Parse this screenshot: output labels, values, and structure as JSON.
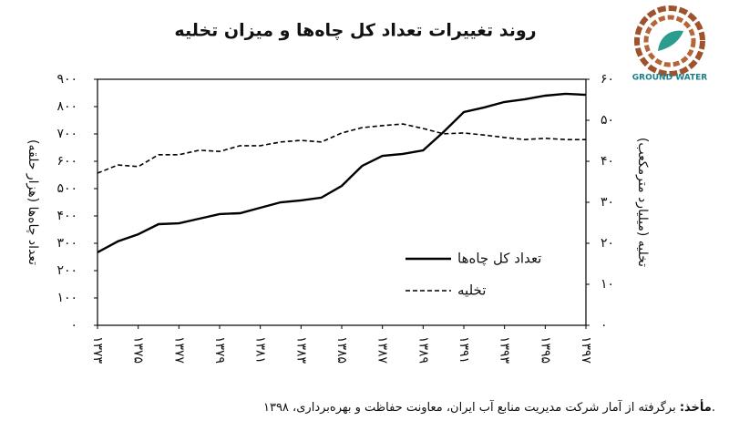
{
  "chart_data": {
    "type": "line",
    "title": "روند تغییرات تعداد کل چاه‌ها و میزان تخلیه",
    "y_label": "تعداد چاه‌ها (هزار حلقه)",
    "y2_label": "تخلیه (میلیارد مترمکعب)",
    "x": [
      1373,
      1374,
      1375,
      1376,
      1377,
      1378,
      1379,
      1380,
      1381,
      1382,
      1383,
      1384,
      1385,
      1386,
      1387,
      1388,
      1389,
      1390,
      1391,
      1392,
      1393,
      1394,
      1395,
      1396,
      1397
    ],
    "xlim": [
      1373,
      1397
    ],
    "xticks": [
      {
        "value": 1373,
        "label": "۱۳۷۳"
      },
      {
        "value": 1375,
        "label": "۱۳۷۵"
      },
      {
        "value": 1377,
        "label": "۱۳۷۷"
      },
      {
        "value": 1379,
        "label": "۱۳۷۹"
      },
      {
        "value": 1381,
        "label": "۱۳۸۱"
      },
      {
        "value": 1383,
        "label": "۱۳۸۳"
      },
      {
        "value": 1385,
        "label": "۱۳۸۵"
      },
      {
        "value": 1387,
        "label": "۱۳۸۷"
      },
      {
        "value": 1389,
        "label": "۱۳۸۹"
      },
      {
        "value": 1391,
        "label": "۱۳۹۱"
      },
      {
        "value": 1393,
        "label": "۱۳۹۳"
      },
      {
        "value": 1395,
        "label": "۱۳۹۵"
      },
      {
        "value": 1397,
        "label": "۱۳۹۷"
      }
    ],
    "ylim": [
      0,
      900
    ],
    "yticks": [
      {
        "value": 0,
        "label": "۰"
      },
      {
        "value": 100,
        "label": "۱۰۰"
      },
      {
        "value": 200,
        "label": "۲۰۰"
      },
      {
        "value": 300,
        "label": "۳۰۰"
      },
      {
        "value": 400,
        "label": "۴۰۰"
      },
      {
        "value": 500,
        "label": "۵۰۰"
      },
      {
        "value": 600,
        "label": "۶۰۰"
      },
      {
        "value": 700,
        "label": "۷۰۰"
      },
      {
        "value": 800,
        "label": "۸۰۰"
      },
      {
        "value": 900,
        "label": "۹۰۰"
      }
    ],
    "y2lim": [
      0,
      60
    ],
    "y2ticks": [
      {
        "value": 0,
        "label": "۰"
      },
      {
        "value": 10,
        "label": "۱۰"
      },
      {
        "value": 20,
        "label": "۲۰"
      },
      {
        "value": 30,
        "label": "۳۰"
      },
      {
        "value": 40,
        "label": "۴۰"
      },
      {
        "value": 50,
        "label": "۵۰"
      },
      {
        "value": 60,
        "label": "۶۰"
      }
    ],
    "legend": "lower right",
    "series": [
      {
        "name": "تعداد کل چاه‌ها",
        "color": "#000000",
        "dash": "solid",
        "values": [
          267,
          307,
          333,
          370,
          373,
          390,
          407,
          410,
          430,
          450,
          457,
          467,
          510,
          583,
          620,
          627,
          640,
          707,
          780,
          797,
          817,
          827,
          840,
          847,
          843
        ]
      },
      {
        "name": "تخلیه",
        "color": "#000000",
        "dash": "dashed",
        "axis": "y2",
        "values": [
          37.1,
          39.1,
          38.7,
          41.6,
          41.6,
          42.7,
          42.4,
          43.8,
          43.8,
          44.7,
          45.1,
          44.7,
          46.9,
          48.2,
          48.7,
          49.1,
          48,
          46.7,
          46.9,
          46.4,
          45.8,
          45.3,
          45.6,
          45.3,
          45.3
        ]
      }
    ]
  },
  "source": {
    "label": "مأخذ:",
    "text": "برگرفته از آمار شرکت مدیریت منابع آب ایران، معاونت حفاظت و بهره‌برداری، ۱۳۹۸."
  },
  "logo_text": "GROUND WATER"
}
